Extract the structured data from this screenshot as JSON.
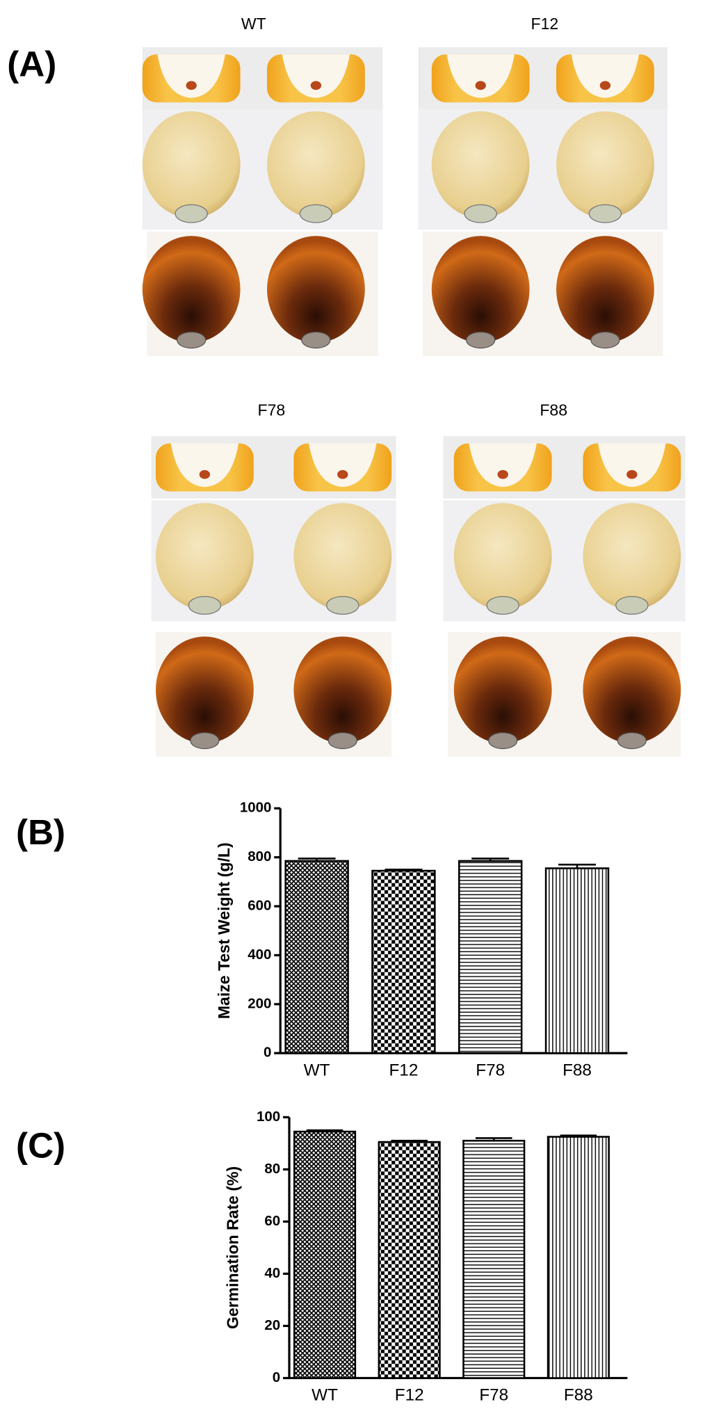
{
  "panels": {
    "labels": [
      "(A)",
      "(B)",
      "(C)"
    ],
    "photo_groups": [
      "WT",
      "F12",
      "F78",
      "F88"
    ]
  },
  "chart_data": [
    {
      "type": "bar",
      "ylabel": "Maize Test Weight (g/L)",
      "categories": [
        "WT",
        "F12",
        "F78",
        "F88"
      ],
      "values": [
        785,
        745,
        785,
        755
      ],
      "errors": [
        10,
        5,
        10,
        15
      ],
      "patterns": [
        "crosshatch",
        "checker",
        "horizontal",
        "vertical"
      ],
      "color": "#000000",
      "ylim": [
        0,
        1000
      ],
      "yticks": [
        0,
        200,
        400,
        600,
        800,
        1000
      ]
    },
    {
      "type": "bar",
      "ylabel": "Germination Rate (%)",
      "categories": [
        "WT",
        "F12",
        "F78",
        "F88"
      ],
      "values": [
        94.5,
        90.5,
        91,
        92.5
      ],
      "errors": [
        0.5,
        0.5,
        1,
        0.5
      ],
      "patterns": [
        "crosshatch",
        "checker",
        "horizontal",
        "vertical"
      ],
      "color": "#000000",
      "ylim": [
        0,
        100
      ],
      "yticks": [
        0,
        20,
        40,
        60,
        80,
        100
      ]
    }
  ]
}
